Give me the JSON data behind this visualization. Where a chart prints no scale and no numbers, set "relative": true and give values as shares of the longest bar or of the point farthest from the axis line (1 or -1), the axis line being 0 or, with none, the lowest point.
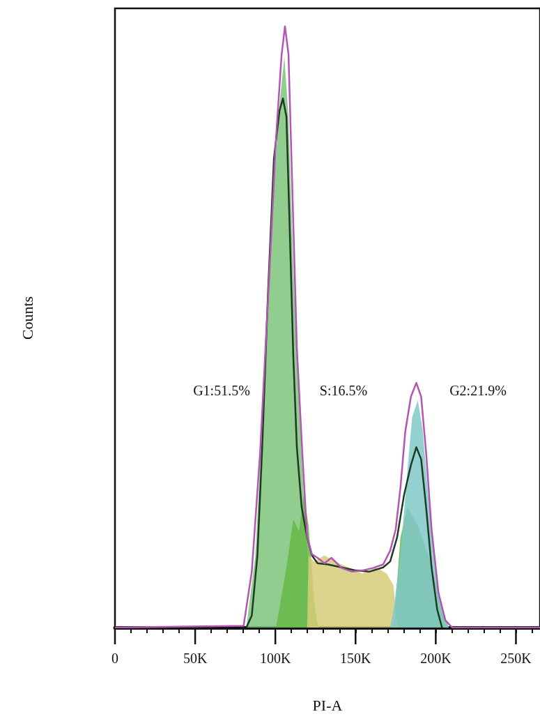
{
  "chart_data": {
    "type": "area",
    "relative": true,
    "xlabel": "PI-A",
    "ylabel": "Counts",
    "xlim": [
      0,
      265000
    ],
    "xticks": [
      0,
      {
        "value": 10000,
        "label": null
      },
      {
        "value": 20000,
        "label": null
      },
      {
        "value": 30000,
        "label": null
      },
      {
        "value": 40000,
        "label": null
      },
      {
        "value": 50000,
        "label": "50K"
      },
      {
        "value": 60000,
        "label": null
      },
      {
        "value": 70000,
        "label": null
      },
      {
        "value": 80000,
        "label": null
      },
      {
        "value": 90000,
        "label": null
      },
      {
        "value": 100000,
        "label": "100K"
      },
      {
        "value": 110000,
        "label": null
      },
      {
        "value": 120000,
        "label": null
      },
      {
        "value": 130000,
        "label": null
      },
      {
        "value": 140000,
        "label": null
      },
      {
        "value": 150000,
        "label": "150K"
      },
      {
        "value": 160000,
        "label": null
      },
      {
        "value": 170000,
        "label": null
      },
      {
        "value": 180000,
        "label": null
      },
      {
        "value": 190000,
        "label": null
      },
      {
        "value": 200000,
        "label": "200K"
      },
      {
        "value": 210000,
        "label": null
      },
      {
        "value": 220000,
        "label": null
      },
      {
        "value": 230000,
        "label": null
      },
      {
        "value": 240000,
        "label": null
      },
      {
        "value": 250000,
        "label": "250K"
      },
      {
        "value": 260000,
        "label": null
      }
    ],
    "grid": false,
    "series": [
      {
        "color": "#7cc47a",
        "x": [
          81900,
          87500,
          93100,
          98300,
          102600,
          105600,
          108200,
          111200,
          114700,
          117700,
          120700,
          124100,
          127200
        ],
        "values": [
          0,
          0.12,
          0.4,
          0.7,
          0.87,
          0.95,
          0.85,
          0.6,
          0.38,
          0.22,
          0.1,
          0.03,
          0
        ]
      },
      {
        "color": "#66b848",
        "x": [
          100400,
          106900,
          111200,
          114700,
          117700,
          120700,
          124100,
          126300,
          173700,
          178000,
          182300,
          188800,
          195300,
          199600,
          203900,
          208200
        ],
        "values": [
          0,
          0.1,
          0.18,
          0.16,
          0.22,
          0.17,
          0.05,
          0,
          0,
          0.15,
          0.2,
          0.17,
          0.12,
          0.08,
          0.03,
          0
        ]
      },
      {
        "color": "#d6cd78",
        "x": [
          119800,
          120700,
          124100,
          130600,
          137100,
          145700,
          154300,
          162900,
          169400,
          173700,
          176000
        ],
        "values": [
          0,
          0.12,
          0.11,
          0.12,
          0.11,
          0.1,
          0.09,
          0.1,
          0.09,
          0.07,
          0
        ]
      },
      {
        "color": "#80c8c8",
        "x": [
          171600,
          173700,
          178000,
          182300,
          185300,
          188800,
          191800,
          195300,
          199600,
          203900,
          208200
        ],
        "values": [
          0,
          0.03,
          0.12,
          0.26,
          0.35,
          0.378,
          0.33,
          0.22,
          0.1,
          0.03,
          0
        ]
      },
      {
        "type": "line",
        "color": "#1f3a24",
        "x": [
          81900,
          85300,
          88800,
          91800,
          95300,
          99100,
          102600,
          104700,
          106900,
          109100,
          111200,
          113400,
          116400,
          119800,
          122800,
          126300,
          132800,
          141400,
          150000,
          158600,
          167200,
          171600,
          175900,
          180200,
          184500,
          187900,
          190900,
          194000,
          197400,
          200900,
          203900
        ],
        "values": [
          0,
          0.02,
          0.12,
          0.3,
          0.55,
          0.78,
          0.86,
          0.88,
          0.85,
          0.65,
          0.45,
          0.3,
          0.2,
          0.15,
          0.12,
          0.107,
          0.105,
          0.1,
          0.095,
          0.093,
          0.1,
          0.11,
          0.15,
          0.22,
          0.27,
          0.3,
          0.28,
          0.2,
          0.1,
          0.03,
          0
        ]
      },
      {
        "type": "line",
        "color": "#b455b4",
        "x": [
          0,
          80200,
          85300,
          90500,
          96100,
          100400,
          103900,
          106000,
          108200,
          110300,
          113400,
          116800,
          119800,
          122800,
          126300,
          130600,
          134900,
          141400,
          147800,
          154300,
          160800,
          167200,
          171600,
          175000,
          178000,
          181000,
          184500,
          187900,
          190900,
          194000,
          197400,
          201700,
          206000,
          210300,
          265000
        ],
        "values": [
          0,
          0.003,
          0.093,
          0.291,
          0.581,
          0.814,
          0.953,
          1,
          0.953,
          0.756,
          0.465,
          0.291,
          0.151,
          0.122,
          0.116,
          0.107,
          0.116,
          0.099,
          0.093,
          0.095,
          0.099,
          0.105,
          0.128,
          0.163,
          0.233,
          0.326,
          0.384,
          0.407,
          0.384,
          0.291,
          0.163,
          0.058,
          0.012,
          0,
          0
        ]
      }
    ],
    "annotations": [
      "G1:51.5%",
      "S:16.5%",
      "G2:21.9%"
    ]
  }
}
